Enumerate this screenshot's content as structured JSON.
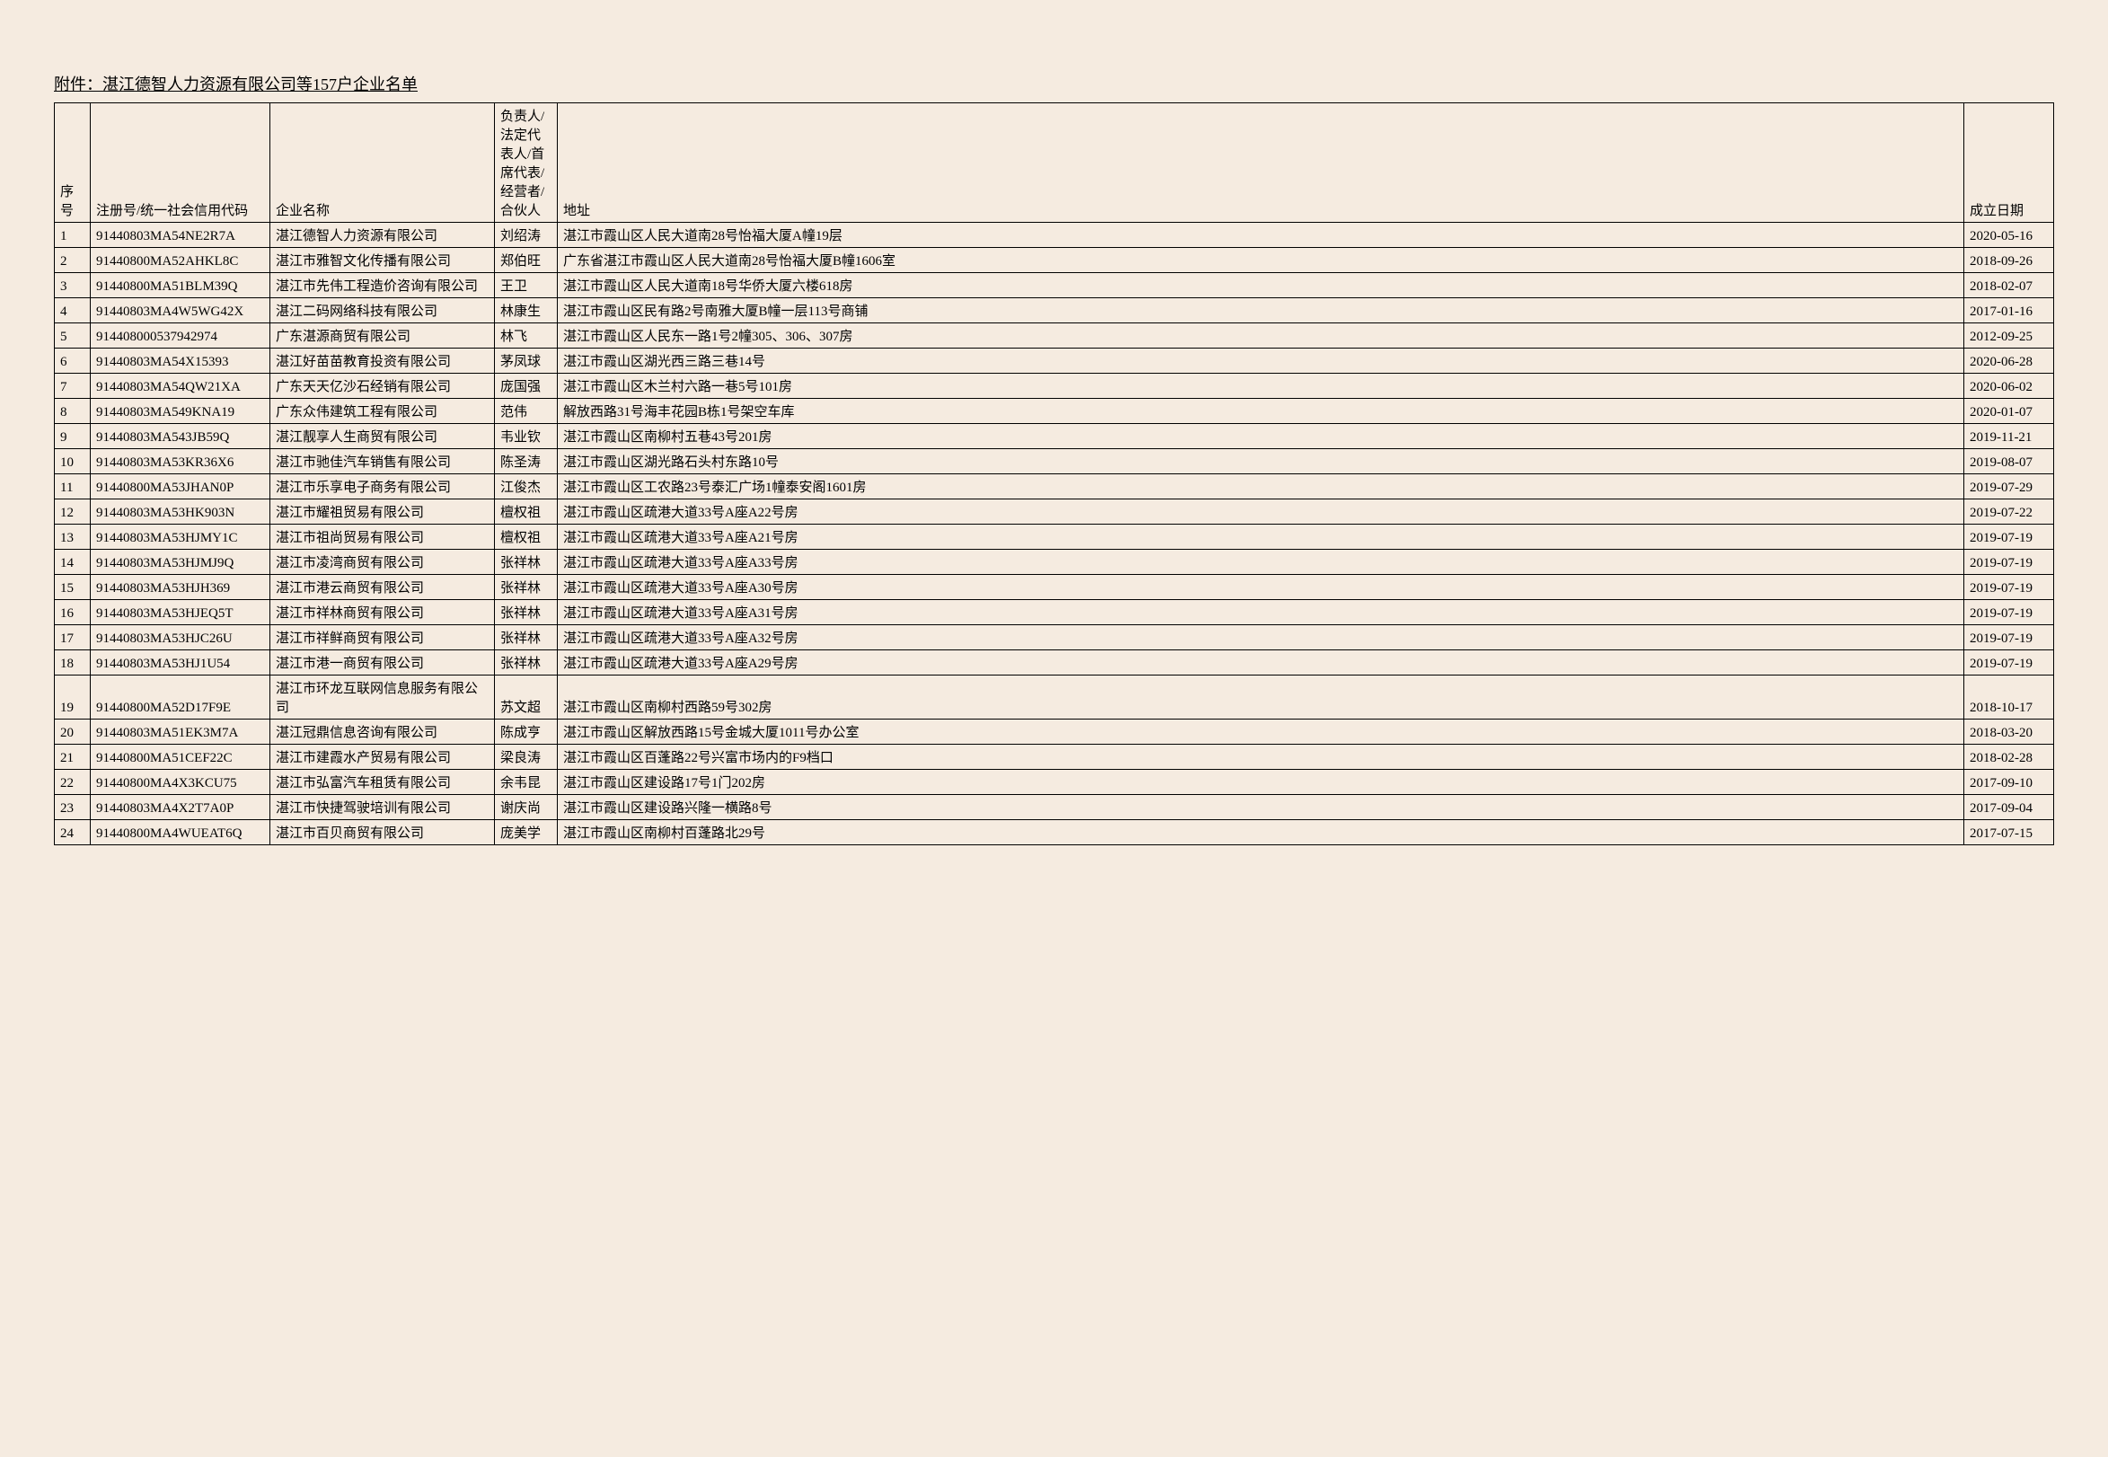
{
  "title": "附件：湛江德智人力资源有限公司等157户企业名单",
  "headers": {
    "seq": "序号",
    "reg_no": "注册号/统一社会信用代码",
    "company_name": "企业名称",
    "person": "负责人/法定代表人/首席代表/经营者/合伙人",
    "address": "地址",
    "date": "成立日期"
  },
  "rows": [
    {
      "seq": "1",
      "reg": "91440803MA54NE2R7A",
      "name": "湛江德智人力资源有限公司",
      "person": "刘绍涛",
      "addr": "湛江市霞山区人民大道南28号怡福大厦A幢19层",
      "date": "2020-05-16"
    },
    {
      "seq": "2",
      "reg": "91440800MA52AHKL8C",
      "name": "湛江市雅智文化传播有限公司",
      "person": "郑伯旺",
      "addr": "广东省湛江市霞山区人民大道南28号怡福大厦B幢1606室",
      "date": "2018-09-26"
    },
    {
      "seq": "3",
      "reg": "91440800MA51BLM39Q",
      "name": "湛江市先伟工程造价咨询有限公司",
      "person": "王卫",
      "addr": "湛江市霞山区人民大道南18号华侨大厦六楼618房",
      "date": "2018-02-07"
    },
    {
      "seq": "4",
      "reg": "91440803MA4W5WG42X",
      "name": "湛江二码网络科技有限公司",
      "person": "林康生",
      "addr": "湛江市霞山区民有路2号南雅大厦B幢一层113号商铺",
      "date": "2017-01-16"
    },
    {
      "seq": "5",
      "reg": "914408000537942974",
      "name": "广东湛源商贸有限公司",
      "person": "林飞",
      "addr": "湛江市霞山区人民东一路1号2幢305、306、307房",
      "date": "2012-09-25"
    },
    {
      "seq": "6",
      "reg": "91440803MA54X15393",
      "name": "湛江好苗苗教育投资有限公司",
      "person": "茅凤球",
      "addr": "湛江市霞山区湖光西三路三巷14号",
      "date": "2020-06-28"
    },
    {
      "seq": "7",
      "reg": "91440803MA54QW21XA",
      "name": "广东天天亿沙石经销有限公司",
      "person": "庞国强",
      "addr": "湛江市霞山区木兰村六路一巷5号101房",
      "date": "2020-06-02"
    },
    {
      "seq": "8",
      "reg": "91440803MA549KNA19",
      "name": "广东众伟建筑工程有限公司",
      "person": "范伟",
      "addr": "解放西路31号海丰花园B栋1号架空车库",
      "date": "2020-01-07"
    },
    {
      "seq": "9",
      "reg": "91440803MA543JB59Q",
      "name": "湛江靓享人生商贸有限公司",
      "person": "韦业钦",
      "addr": "湛江市霞山区南柳村五巷43号201房",
      "date": "2019-11-21"
    },
    {
      "seq": "10",
      "reg": "91440803MA53KR36X6",
      "name": "湛江市驰佳汽车销售有限公司",
      "person": "陈圣涛",
      "addr": "湛江市霞山区湖光路石头村东路10号",
      "date": "2019-08-07"
    },
    {
      "seq": "11",
      "reg": "91440800MA53JHAN0P",
      "name": "湛江市乐享电子商务有限公司",
      "person": "江俊杰",
      "addr": "湛江市霞山区工农路23号泰汇广场1幢泰安阁1601房",
      "date": "2019-07-29"
    },
    {
      "seq": "12",
      "reg": "91440803MA53HK903N",
      "name": "湛江市耀祖贸易有限公司",
      "person": "檀权祖",
      "addr": "湛江市霞山区疏港大道33号A座A22号房",
      "date": "2019-07-22"
    },
    {
      "seq": "13",
      "reg": "91440803MA53HJMY1C",
      "name": "湛江市祖尚贸易有限公司",
      "person": "檀权祖",
      "addr": "湛江市霞山区疏港大道33号A座A21号房",
      "date": "2019-07-19"
    },
    {
      "seq": "14",
      "reg": "91440803MA53HJMJ9Q",
      "name": "湛江市凌湾商贸有限公司",
      "person": "张祥林",
      "addr": "湛江市霞山区疏港大道33号A座A33号房",
      "date": "2019-07-19"
    },
    {
      "seq": "15",
      "reg": "91440803MA53HJH369",
      "name": "湛江市港云商贸有限公司",
      "person": "张祥林",
      "addr": "湛江市霞山区疏港大道33号A座A30号房",
      "date": "2019-07-19"
    },
    {
      "seq": "16",
      "reg": "91440803MA53HJEQ5T",
      "name": "湛江市祥林商贸有限公司",
      "person": "张祥林",
      "addr": "湛江市霞山区疏港大道33号A座A31号房",
      "date": "2019-07-19"
    },
    {
      "seq": "17",
      "reg": "91440803MA53HJC26U",
      "name": "湛江市祥鲜商贸有限公司",
      "person": "张祥林",
      "addr": "湛江市霞山区疏港大道33号A座A32号房",
      "date": "2019-07-19"
    },
    {
      "seq": "18",
      "reg": "91440803MA53HJ1U54",
      "name": "湛江市港一商贸有限公司",
      "person": "张祥林",
      "addr": "湛江市霞山区疏港大道33号A座A29号房",
      "date": "2019-07-19"
    },
    {
      "seq": "19",
      "reg": "91440800MA52D17F9E",
      "name": "湛江市环龙互联网信息服务有限公司",
      "person": "苏文超",
      "addr": "湛江市霞山区南柳村西路59号302房",
      "date": "2018-10-17"
    },
    {
      "seq": "20",
      "reg": "91440803MA51EK3M7A",
      "name": "湛江冠鼎信息咨询有限公司",
      "person": "陈成亨",
      "addr": "湛江市霞山区解放西路15号金城大厦1011号办公室",
      "date": "2018-03-20"
    },
    {
      "seq": "21",
      "reg": "91440800MA51CEF22C",
      "name": "湛江市建霞水产贸易有限公司",
      "person": "梁良涛",
      "addr": "湛江市霞山区百蓬路22号兴富市场内的F9档口",
      "date": "2018-02-28"
    },
    {
      "seq": "22",
      "reg": "91440800MA4X3KCU75",
      "name": "湛江市弘富汽车租赁有限公司",
      "person": "余韦昆",
      "addr": "湛江市霞山区建设路17号1门202房",
      "date": "2017-09-10"
    },
    {
      "seq": "23",
      "reg": "91440803MA4X2T7A0P",
      "name": "湛江市快捷驾驶培训有限公司",
      "person": "谢庆尚",
      "addr": "湛江市霞山区建设路兴隆一横路8号",
      "date": "2017-09-04"
    },
    {
      "seq": "24",
      "reg": "91440800MA4WUEAT6Q",
      "name": "湛江市百贝商贸有限公司",
      "person": "庞美学",
      "addr": "湛江市霞山区南柳村百蓬路北29号",
      "date": "2017-07-15"
    }
  ]
}
